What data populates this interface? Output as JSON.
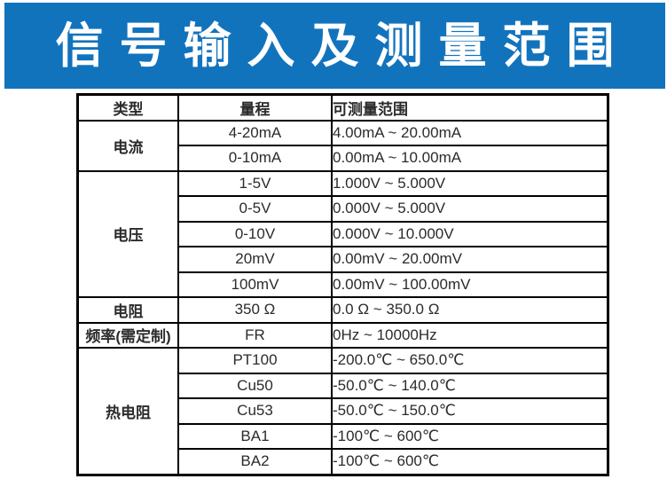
{
  "banner": {
    "title": "信号输入及测量范围",
    "bg_color": "#1273bd",
    "text_color": "#ffffff"
  },
  "table": {
    "headers": {
      "type": "类型",
      "range": "量程",
      "measurable": "可测量范围"
    },
    "rows": [
      {
        "type": "电流",
        "rowspan": 2,
        "range": "4-20mA",
        "measurable": "4.00mA  ~  20.00mA"
      },
      {
        "range": "0-10mA",
        "measurable": "0.00mA  ~  10.00mA"
      },
      {
        "type": "电压",
        "rowspan": 5,
        "range": "1-5V",
        "measurable": "1.000V  ~  5.000V"
      },
      {
        "range": "0-5V",
        "measurable": "0.000V  ~  5.000V"
      },
      {
        "range": "0-10V",
        "measurable": "0.000V  ~  10.000V"
      },
      {
        "range": "20mV",
        "measurable": "0.00mV  ~  20.00mV"
      },
      {
        "range": "100mV",
        "measurable": "0.00mV  ~  100.00mV"
      },
      {
        "type": "电阻",
        "rowspan": 1,
        "range": "350 Ω",
        "measurable": "0.0 Ω  ~  350.0 Ω"
      },
      {
        "type": "频率(需定制)",
        "rowspan": 1,
        "range": "FR",
        "measurable": "0Hz  ~  10000Hz"
      },
      {
        "type": "热电阻",
        "rowspan": 5,
        "range": "PT100",
        "measurable": "-200.0℃  ~  650.0℃"
      },
      {
        "range": "Cu50",
        "measurable": "-50.0℃  ~  140.0℃"
      },
      {
        "range": "Cu53",
        "measurable": "-50.0℃  ~  150.0℃"
      },
      {
        "range": "BA1",
        "measurable": "-100℃  ~  600℃"
      },
      {
        "range": "BA2",
        "measurable": "-100℃  ~  600℃"
      }
    ]
  }
}
